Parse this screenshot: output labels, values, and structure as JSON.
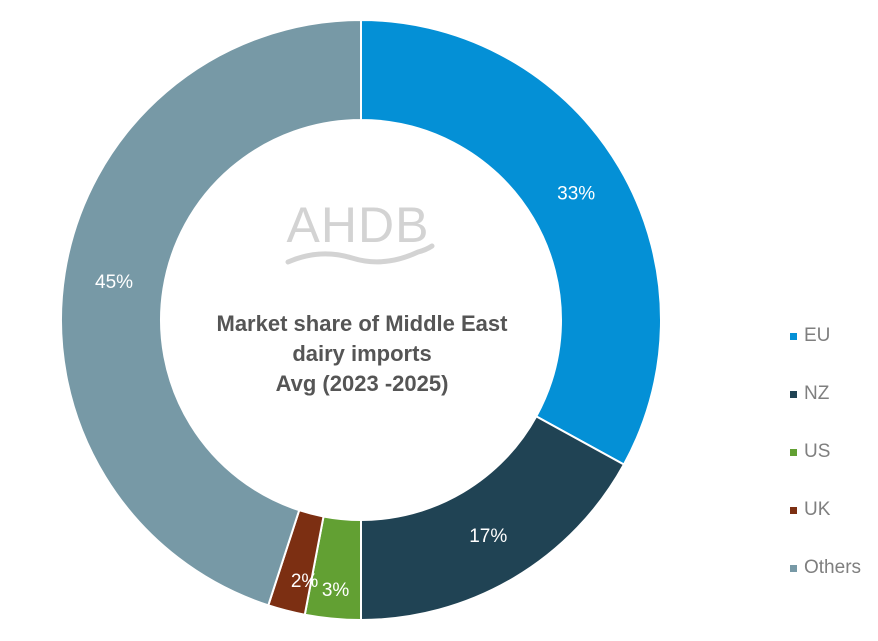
{
  "chart_data": {
    "type": "pie",
    "variant": "donut",
    "title_lines": [
      "Market share of Middle East",
      "dairy imports",
      "Avg (2023 -2025)"
    ],
    "watermark": "AHDB",
    "legend_position": "right",
    "slices": [
      {
        "name": "EU",
        "value": 33,
        "label": "33%",
        "color": "#0490d6"
      },
      {
        "name": "NZ",
        "value": 17,
        "label": "17%",
        "color": "#204354"
      },
      {
        "name": "US",
        "value": 3,
        "label": "3%",
        "color": "#62a033"
      },
      {
        "name": "UK",
        "value": 2,
        "label": "2%",
        "color": "#7c2f12"
      },
      {
        "name": "Others",
        "value": 45,
        "label": "45%",
        "color": "#7799a6"
      }
    ]
  }
}
